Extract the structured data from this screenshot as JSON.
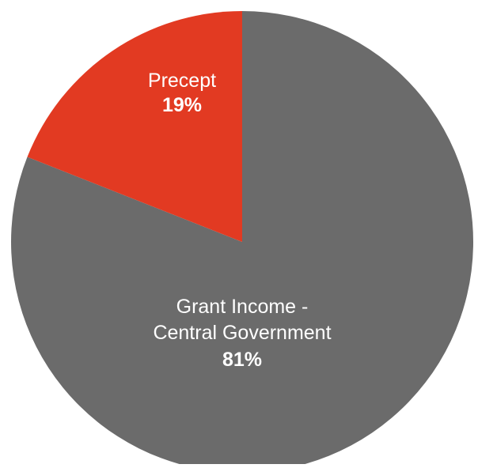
{
  "chart_data": {
    "type": "pie",
    "start_angle_deg": 0,
    "direction": "clockwise",
    "slices": [
      {
        "label_lines": [
          "Grant Income -",
          "Central Government"
        ],
        "value": 81,
        "percent_label": "81%",
        "color": "#6b6b6b"
      },
      {
        "label_lines": [
          "Precept"
        ],
        "value": 19,
        "percent_label": "19%",
        "color": "#e23a22"
      }
    ]
  }
}
